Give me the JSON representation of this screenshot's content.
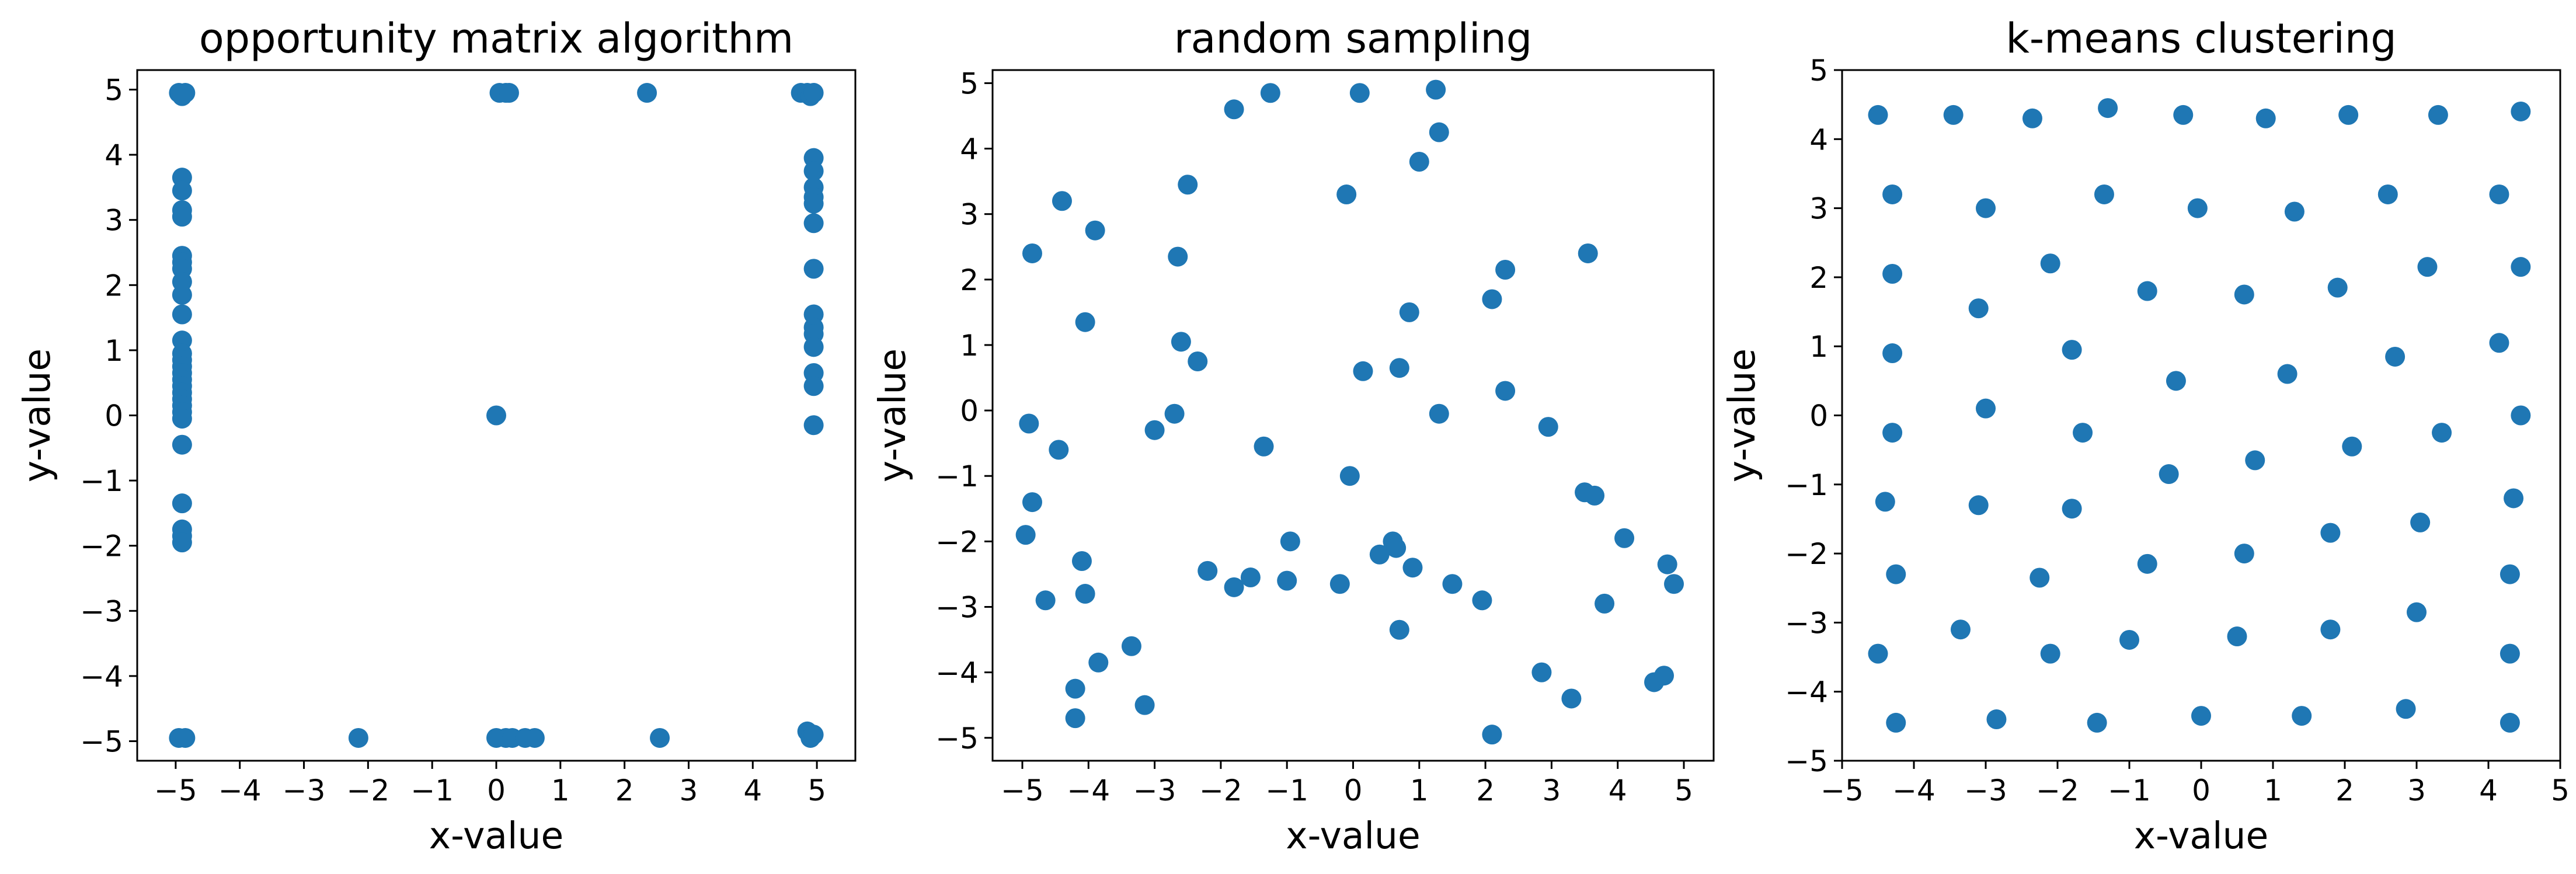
{
  "chart_data": [
    {
      "type": "scatter",
      "title": "opportunity matrix algorithm",
      "xlabel": "x-value",
      "ylabel": "y-value",
      "xlim": [
        -5.6,
        5.6
      ],
      "ylim": [
        -5.3,
        5.3
      ],
      "xticks": [
        -5,
        -4,
        -3,
        -2,
        -1,
        0,
        1,
        2,
        3,
        4,
        5
      ],
      "yticks": [
        -5,
        -4,
        -3,
        -2,
        -1,
        0,
        1,
        2,
        3,
        4,
        5
      ],
      "grid": false,
      "color": "#1f77b4",
      "series": [
        {
          "points": [
            [
              -4.95,
              4.95
            ],
            [
              -4.9,
              4.9
            ],
            [
              -4.85,
              4.95
            ],
            [
              -4.9,
              4.92
            ],
            [
              -4.9,
              3.65
            ],
            [
              -4.9,
              3.45
            ],
            [
              -4.9,
              3.15
            ],
            [
              -4.9,
              3.05
            ],
            [
              -4.9,
              2.45
            ],
            [
              -4.9,
              2.35
            ],
            [
              -4.9,
              2.25
            ],
            [
              -4.9,
              2.05
            ],
            [
              -4.9,
              1.85
            ],
            [
              -4.9,
              1.55
            ],
            [
              -4.9,
              1.15
            ],
            [
              -4.9,
              0.95
            ],
            [
              -4.9,
              0.85
            ],
            [
              -4.9,
              0.75
            ],
            [
              -4.9,
              0.65
            ],
            [
              -4.9,
              0.55
            ],
            [
              -4.9,
              0.45
            ],
            [
              -4.9,
              0.35
            ],
            [
              -4.9,
              0.25
            ],
            [
              -4.9,
              0.15
            ],
            [
              -4.9,
              0.05
            ],
            [
              -4.9,
              -0.05
            ],
            [
              -4.9,
              -0.45
            ],
            [
              -4.9,
              -1.35
            ],
            [
              -4.9,
              -1.75
            ],
            [
              -4.9,
              -1.85
            ],
            [
              -4.9,
              -1.95
            ],
            [
              -4.95,
              -4.95
            ],
            [
              -4.85,
              -4.95
            ],
            [
              0.05,
              4.95
            ],
            [
              0.15,
              4.95
            ],
            [
              0.2,
              4.95
            ],
            [
              2.35,
              4.95
            ],
            [
              4.75,
              4.95
            ],
            [
              4.85,
              4.95
            ],
            [
              4.9,
              4.9
            ],
            [
              4.95,
              4.95
            ],
            [
              4.95,
              3.95
            ],
            [
              4.95,
              3.75
            ],
            [
              4.95,
              3.5
            ],
            [
              4.95,
              3.35
            ],
            [
              4.95,
              3.25
            ],
            [
              4.95,
              2.95
            ],
            [
              4.95,
              2.25
            ],
            [
              4.95,
              1.55
            ],
            [
              4.95,
              1.35
            ],
            [
              4.95,
              1.25
            ],
            [
              4.95,
              1.05
            ],
            [
              4.95,
              0.65
            ],
            [
              4.95,
              0.45
            ],
            [
              4.95,
              -0.15
            ],
            [
              0.0,
              0.0
            ],
            [
              -2.15,
              -4.95
            ],
            [
              0.0,
              -4.95
            ],
            [
              0.15,
              -4.95
            ],
            [
              0.25,
              -4.95
            ],
            [
              0.45,
              -4.95
            ],
            [
              0.6,
              -4.95
            ],
            [
              2.55,
              -4.95
            ],
            [
              4.85,
              -4.85
            ],
            [
              4.9,
              -4.95
            ],
            [
              4.95,
              -4.9
            ]
          ]
        }
      ]
    },
    {
      "type": "scatter",
      "title": "random sampling",
      "xlabel": "x-value",
      "ylabel": "y-value",
      "xlim": [
        -5.45,
        5.45
      ],
      "ylim": [
        -5.35,
        5.2
      ],
      "xticks": [
        -5,
        -4,
        -3,
        -2,
        -1,
        0,
        1,
        2,
        3,
        4,
        5
      ],
      "yticks": [
        -5,
        -4,
        -3,
        -2,
        -1,
        0,
        1,
        2,
        3,
        4,
        5
      ],
      "grid": false,
      "color": "#1f77b4",
      "series": [
        {
          "points": [
            [
              -1.8,
              4.6
            ],
            [
              -1.25,
              4.85
            ],
            [
              0.1,
              4.85
            ],
            [
              1.25,
              4.9
            ],
            [
              1.3,
              4.25
            ],
            [
              -4.4,
              3.2
            ],
            [
              -2.5,
              3.45
            ],
            [
              -0.1,
              3.3
            ],
            [
              1.0,
              3.8
            ],
            [
              -4.85,
              2.4
            ],
            [
              -3.9,
              2.75
            ],
            [
              -2.65,
              2.35
            ],
            [
              2.3,
              2.15
            ],
            [
              3.55,
              2.4
            ],
            [
              -4.05,
              1.35
            ],
            [
              -2.6,
              1.05
            ],
            [
              -2.35,
              0.75
            ],
            [
              0.85,
              1.5
            ],
            [
              2.1,
              1.7
            ],
            [
              0.15,
              0.6
            ],
            [
              0.7,
              0.65
            ],
            [
              2.3,
              0.3
            ],
            [
              1.3,
              -0.05
            ],
            [
              -2.7,
              -0.05
            ],
            [
              -4.9,
              -0.2
            ],
            [
              -3.0,
              -0.3
            ],
            [
              2.95,
              -0.25
            ],
            [
              -4.45,
              -0.6
            ],
            [
              -1.35,
              -0.55
            ],
            [
              -4.85,
              -1.4
            ],
            [
              -0.05,
              -1.0
            ],
            [
              3.5,
              -1.25
            ],
            [
              3.65,
              -1.3
            ],
            [
              -4.95,
              -1.9
            ],
            [
              4.1,
              -1.95
            ],
            [
              -0.95,
              -2.0
            ],
            [
              -4.1,
              -2.3
            ],
            [
              4.75,
              -2.35
            ],
            [
              0.4,
              -2.2
            ],
            [
              0.6,
              -2.0
            ],
            [
              0.65,
              -2.1
            ],
            [
              0.9,
              -2.4
            ],
            [
              -2.2,
              -2.45
            ],
            [
              -4.05,
              -2.8
            ],
            [
              -4.65,
              -2.9
            ],
            [
              -1.55,
              -2.55
            ],
            [
              -1.8,
              -2.7
            ],
            [
              -1.0,
              -2.6
            ],
            [
              -0.2,
              -2.65
            ],
            [
              1.5,
              -2.65
            ],
            [
              1.95,
              -2.9
            ],
            [
              3.8,
              -2.95
            ],
            [
              4.85,
              -2.65
            ],
            [
              -3.35,
              -3.6
            ],
            [
              -3.85,
              -3.85
            ],
            [
              0.7,
              -3.35
            ],
            [
              -4.2,
              -4.25
            ],
            [
              -3.15,
              -4.5
            ],
            [
              2.85,
              -4.0
            ],
            [
              3.3,
              -4.4
            ],
            [
              4.55,
              -4.15
            ],
            [
              4.7,
              -4.05
            ],
            [
              -4.2,
              -4.7
            ],
            [
              2.1,
              -4.95
            ]
          ]
        }
      ]
    },
    {
      "type": "scatter",
      "title": "k-means clustering",
      "xlabel": "x-value",
      "ylabel": "y-value",
      "xlim": [
        -5,
        5
      ],
      "ylim": [
        -5,
        5
      ],
      "xticks": [
        -5,
        -4,
        -3,
        -2,
        -1,
        0,
        1,
        2,
        3,
        4,
        5
      ],
      "yticks": [
        -5,
        -4,
        -3,
        -2,
        -1,
        0,
        1,
        2,
        3,
        4,
        5
      ],
      "grid": false,
      "color": "#1f77b4",
      "series": [
        {
          "points": [
            [
              -4.5,
              4.35
            ],
            [
              -3.45,
              4.35
            ],
            [
              -2.35,
              4.3
            ],
            [
              -1.3,
              4.45
            ],
            [
              -0.25,
              4.35
            ],
            [
              0.9,
              4.3
            ],
            [
              2.05,
              4.35
            ],
            [
              3.3,
              4.35
            ],
            [
              4.45,
              4.4
            ],
            [
              -4.3,
              3.2
            ],
            [
              -3.0,
              3.0
            ],
            [
              -1.35,
              3.2
            ],
            [
              -0.05,
              3.0
            ],
            [
              1.3,
              2.95
            ],
            [
              2.6,
              3.2
            ],
            [
              4.15,
              3.2
            ],
            [
              -4.3,
              2.05
            ],
            [
              -2.1,
              2.2
            ],
            [
              3.15,
              2.15
            ],
            [
              4.45,
              2.15
            ],
            [
              -3.1,
              1.55
            ],
            [
              -0.75,
              1.8
            ],
            [
              0.6,
              1.75
            ],
            [
              1.9,
              1.85
            ],
            [
              -4.3,
              0.9
            ],
            [
              -1.8,
              0.95
            ],
            [
              2.7,
              0.85
            ],
            [
              4.15,
              1.05
            ],
            [
              -0.35,
              0.5
            ],
            [
              1.2,
              0.6
            ],
            [
              -3.0,
              0.1
            ],
            [
              -4.3,
              -0.25
            ],
            [
              -1.65,
              -0.25
            ],
            [
              3.35,
              -0.25
            ],
            [
              4.45,
              0.0
            ],
            [
              2.1,
              -0.45
            ],
            [
              -0.45,
              -0.85
            ],
            [
              0.75,
              -0.65
            ],
            [
              -4.4,
              -1.25
            ],
            [
              -3.1,
              -1.3
            ],
            [
              -1.8,
              -1.35
            ],
            [
              4.35,
              -1.2
            ],
            [
              1.8,
              -1.7
            ],
            [
              3.05,
              -1.55
            ],
            [
              -4.25,
              -2.3
            ],
            [
              -0.75,
              -2.15
            ],
            [
              0.6,
              -2.0
            ],
            [
              -2.25,
              -2.35
            ],
            [
              4.3,
              -2.3
            ],
            [
              -3.35,
              -3.1
            ],
            [
              -1.0,
              -3.25
            ],
            [
              0.5,
              -3.2
            ],
            [
              1.8,
              -3.1
            ],
            [
              3.0,
              -2.85
            ],
            [
              -4.5,
              -3.45
            ],
            [
              -2.1,
              -3.45
            ],
            [
              4.3,
              -3.45
            ],
            [
              -4.25,
              -4.45
            ],
            [
              -2.85,
              -4.4
            ],
            [
              -1.45,
              -4.45
            ],
            [
              0.0,
              -4.35
            ],
            [
              1.4,
              -4.35
            ],
            [
              2.85,
              -4.25
            ],
            [
              4.3,
              -4.45
            ]
          ]
        }
      ]
    }
  ]
}
